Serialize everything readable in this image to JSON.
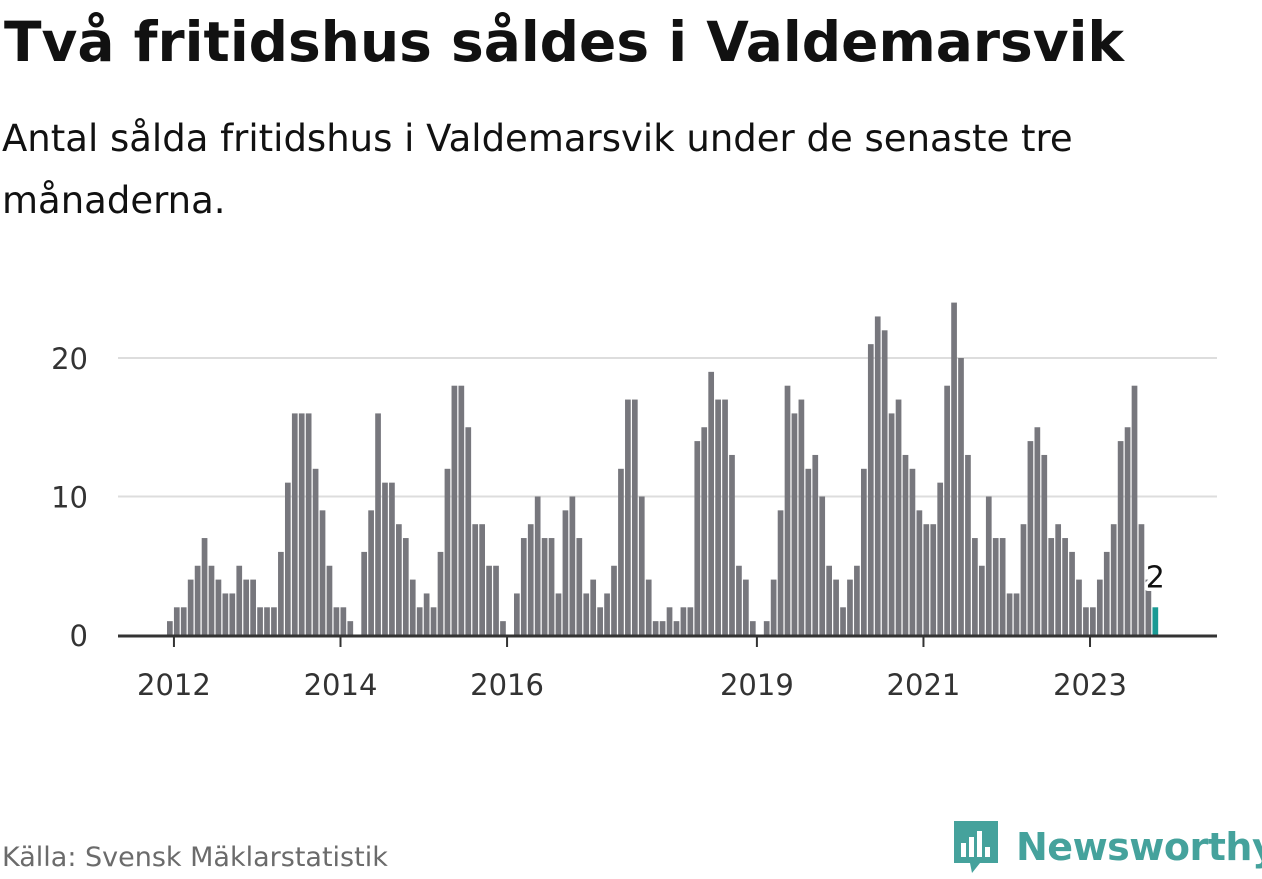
{
  "header": {
    "title": "Två fritidshus såldes i Valdemarsvik",
    "subtitle": "Antal sålda fritidshus i Valdemarsvik under de senaste tre månaderna."
  },
  "footer": {
    "source": "Källa: Svensk Mäklarstatistik",
    "brand": "Newsworthy"
  },
  "colors": {
    "bar": "#77777d",
    "highlight": "#1a9a94",
    "grid": "#dddddd",
    "axis": "#333333",
    "brand": "#45a29c"
  },
  "chart_data": {
    "type": "bar",
    "x_tick_labels": [
      "2012",
      "2014",
      "2016",
      "2019",
      "2021",
      "2023"
    ],
    "x_tick_index": [
      1,
      25,
      49,
      85,
      109,
      133
    ],
    "y_ticks": [
      0,
      10,
      20
    ],
    "ylim": [
      0,
      25
    ],
    "values": [
      1,
      2,
      2,
      4,
      5,
      7,
      5,
      4,
      3,
      3,
      5,
      4,
      4,
      2,
      2,
      2,
      6,
      11,
      16,
      16,
      16,
      12,
      9,
      5,
      2,
      2,
      1,
      0,
      6,
      9,
      16,
      11,
      11,
      8,
      7,
      4,
      2,
      3,
      2,
      6,
      12,
      18,
      18,
      15,
      8,
      8,
      5,
      5,
      1,
      0,
      3,
      7,
      8,
      10,
      7,
      7,
      3,
      9,
      10,
      7,
      3,
      4,
      2,
      3,
      5,
      12,
      17,
      17,
      10,
      4,
      1,
      1,
      2,
      1,
      2,
      2,
      14,
      15,
      19,
      17,
      17,
      13,
      5,
      4,
      1,
      0,
      1,
      4,
      9,
      18,
      16,
      17,
      12,
      13,
      10,
      5,
      4,
      2,
      4,
      5,
      12,
      21,
      23,
      22,
      16,
      17,
      13,
      12,
      9,
      8,
      8,
      11,
      18,
      24,
      20,
      13,
      7,
      5,
      10,
      7,
      7,
      3,
      3,
      8,
      14,
      15,
      13,
      7,
      8,
      7,
      6,
      4,
      2,
      2,
      4,
      6,
      8,
      14,
      15,
      18,
      8,
      4,
      2
    ],
    "highlight": {
      "index": 142,
      "label": "2"
    },
    "grid": true,
    "legend": "none"
  }
}
